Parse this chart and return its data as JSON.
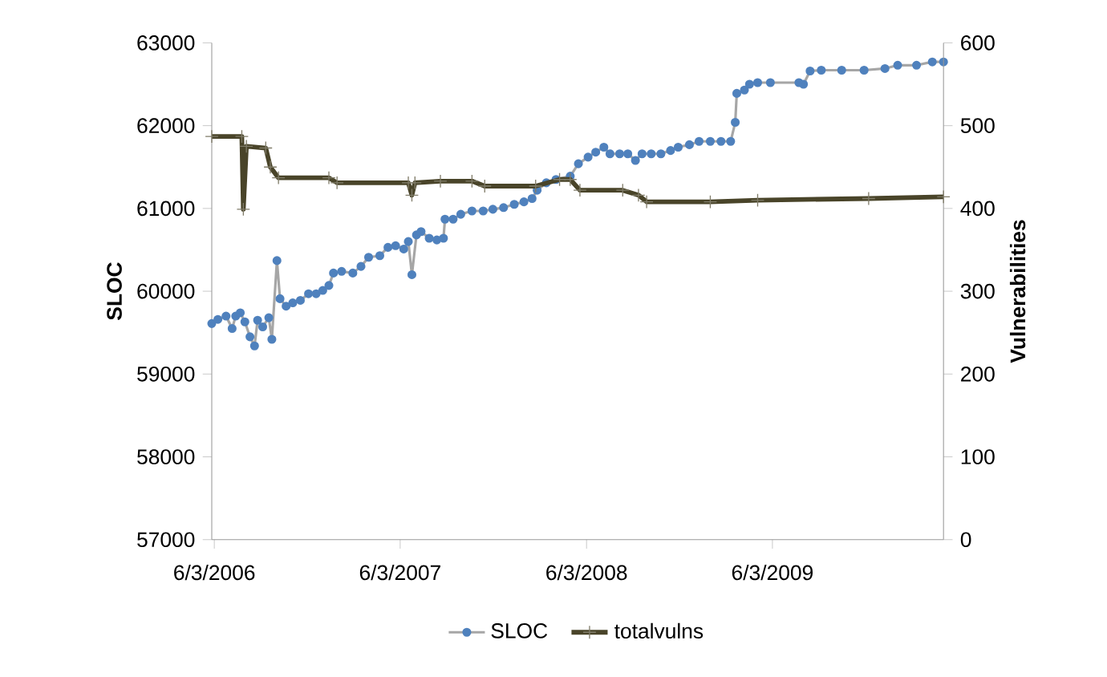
{
  "chart_data": {
    "type": "line",
    "ylabel": "SLOC",
    "y2label": "Vulnerabilities",
    "xlim": [
      "2006-05-29",
      "2010-05-05"
    ],
    "xticks": [
      {
        "value": "2006-06-03",
        "label": "6/3/2006"
      },
      {
        "value": "2007-06-03",
        "label": "6/3/2007"
      },
      {
        "value": "2008-06-03",
        "label": "6/3/2008"
      },
      {
        "value": "2009-06-03",
        "label": "6/3/2009"
      }
    ],
    "ylim": [
      57000,
      63000
    ],
    "yticks": [
      57000,
      58000,
      59000,
      60000,
      61000,
      62000,
      63000
    ],
    "y2lim": [
      0,
      600
    ],
    "y2ticks": [
      0,
      100,
      200,
      300,
      400,
      500,
      600
    ],
    "legend": "bottom",
    "series": [
      {
        "name": "SLOC",
        "color": "#4f81bd",
        "marker": "circle",
        "axis": "y",
        "x": [
          "2006-05-29",
          "2006-06-10",
          "2006-06-26",
          "2006-07-08",
          "2006-07-15",
          "2006-07-24",
          "2006-08-02",
          "2006-08-12",
          "2006-08-21",
          "2006-08-27",
          "2006-09-06",
          "2006-09-18",
          "2006-09-24",
          "2006-10-04",
          "2006-10-10",
          "2006-10-22",
          "2006-11-04",
          "2006-11-19",
          "2006-12-05",
          "2006-12-20",
          "2007-01-02",
          "2007-01-14",
          "2007-01-23",
          "2007-02-08",
          "2007-03-02",
          "2007-03-18",
          "2007-04-02",
          "2007-04-24",
          "2007-05-10",
          "2007-05-25",
          "2007-06-10",
          "2007-06-19",
          "2007-06-26",
          "2007-07-05",
          "2007-07-14",
          "2007-07-30",
          "2007-08-14",
          "2007-08-27",
          "2007-08-30",
          "2007-09-15",
          "2007-09-30",
          "2007-10-22",
          "2007-11-13",
          "2007-12-02",
          "2007-12-23",
          "2008-01-13",
          "2008-02-01",
          "2008-02-17",
          "2008-02-27",
          "2008-03-16",
          "2008-04-04",
          "2008-05-02",
          "2008-05-18",
          "2008-06-06",
          "2008-06-21",
          "2008-07-07",
          "2008-07-19",
          "2008-08-07",
          "2008-08-23",
          "2008-09-07",
          "2008-09-20",
          "2008-10-08",
          "2008-10-27",
          "2008-11-15",
          "2008-11-30",
          "2008-12-22",
          "2009-01-10",
          "2009-02-01",
          "2009-02-22",
          "2009-03-13",
          "2009-03-22",
          "2009-03-25",
          "2009-04-09",
          "2009-04-19",
          "2009-05-05",
          "2009-05-30",
          "2009-07-25",
          "2009-08-03",
          "2009-08-16",
          "2009-09-07",
          "2009-10-17",
          "2009-11-30",
          "2010-01-10",
          "2010-02-04",
          "2010-03-13",
          "2010-04-13",
          "2010-05-05"
        ],
        "values": [
          59610,
          59660,
          59700,
          59550,
          59700,
          59740,
          59630,
          59450,
          59340,
          59650,
          59570,
          59680,
          59420,
          60370,
          59910,
          59820,
          59860,
          59890,
          59970,
          59970,
          60010,
          60070,
          60220,
          60240,
          60220,
          60300,
          60410,
          60430,
          60530,
          60550,
          60510,
          60600,
          60200,
          60680,
          60720,
          60640,
          60620,
          60640,
          60870,
          60870,
          60930,
          60970,
          60970,
          60990,
          61010,
          61050,
          61080,
          61120,
          61220,
          61310,
          61350,
          61390,
          61540,
          61620,
          61680,
          61740,
          61660,
          61660,
          61660,
          61580,
          61660,
          61660,
          61660,
          61700,
          61740,
          61770,
          61810,
          61810,
          61810,
          61810,
          62040,
          62390,
          62430,
          62500,
          62520,
          62520,
          62520,
          62500,
          62660,
          62670,
          62670,
          62670,
          62690,
          62730,
          62730,
          62770,
          62770
        ]
      },
      {
        "name": "totalvulns",
        "color": "#494429",
        "marker": "cross",
        "axis": "y2",
        "x": [
          "2006-05-29",
          "2006-07-27",
          "2006-07-30",
          "2006-08-05",
          "2006-09-12",
          "2006-09-21",
          "2006-10-07",
          "2007-01-14",
          "2007-01-30",
          "2007-06-19",
          "2007-06-26",
          "2007-07-02",
          "2007-08-21",
          "2007-10-22",
          "2007-11-16",
          "2008-02-24",
          "2008-04-11",
          "2008-05-02",
          "2008-05-21",
          "2008-08-13",
          "2008-09-13",
          "2008-09-29",
          "2009-02-01",
          "2009-05-05",
          "2009-12-09",
          "2010-05-05"
        ],
        "values": [
          487,
          487,
          399,
          475,
          473,
          450,
          437,
          437,
          431,
          431,
          416,
          431,
          433,
          433,
          427,
          427,
          435,
          435,
          422,
          422,
          416,
          408,
          408,
          410,
          412,
          414
        ]
      }
    ]
  }
}
